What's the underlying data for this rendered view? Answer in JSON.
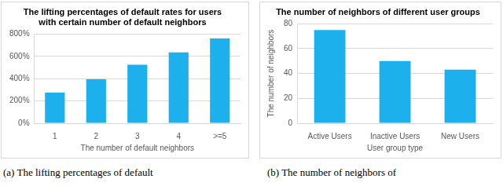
{
  "chart_data": [
    {
      "type": "bar",
      "title": [
        "The lifting percentages of default rates for users",
        "with certain number of default neighbors"
      ],
      "x_label": "The number of default neighbors",
      "categories": [
        "1",
        "2",
        "3",
        "4",
        ">=5"
      ],
      "values": [
        275,
        395,
        525,
        635,
        760
      ],
      "color": "#1cb0ec",
      "ylim": [
        0,
        800
      ],
      "yticks": [
        {
          "value": 0,
          "label": "0%"
        },
        {
          "value": 200,
          "label": "200%"
        },
        {
          "value": 400,
          "label": "400%"
        },
        {
          "value": 600,
          "label": "600%"
        },
        {
          "value": 800,
          "label": "800%"
        }
      ],
      "grid": true
    },
    {
      "type": "bar",
      "title": "The number of neighbors of different user groups",
      "x_label": "User group type",
      "y_label": "The number of neighbors",
      "categories": [
        "Active Users",
        "Inactive Users",
        "New Users"
      ],
      "values": [
        75,
        50,
        43
      ],
      "color": "#1cb0ec",
      "ylim": [
        0,
        80
      ],
      "yticks": [
        0,
        20,
        40,
        60,
        80
      ],
      "grid": true
    }
  ],
  "captions": [
    "(a) The lifting percentages of default",
    "(b) The number of neighbors of"
  ]
}
